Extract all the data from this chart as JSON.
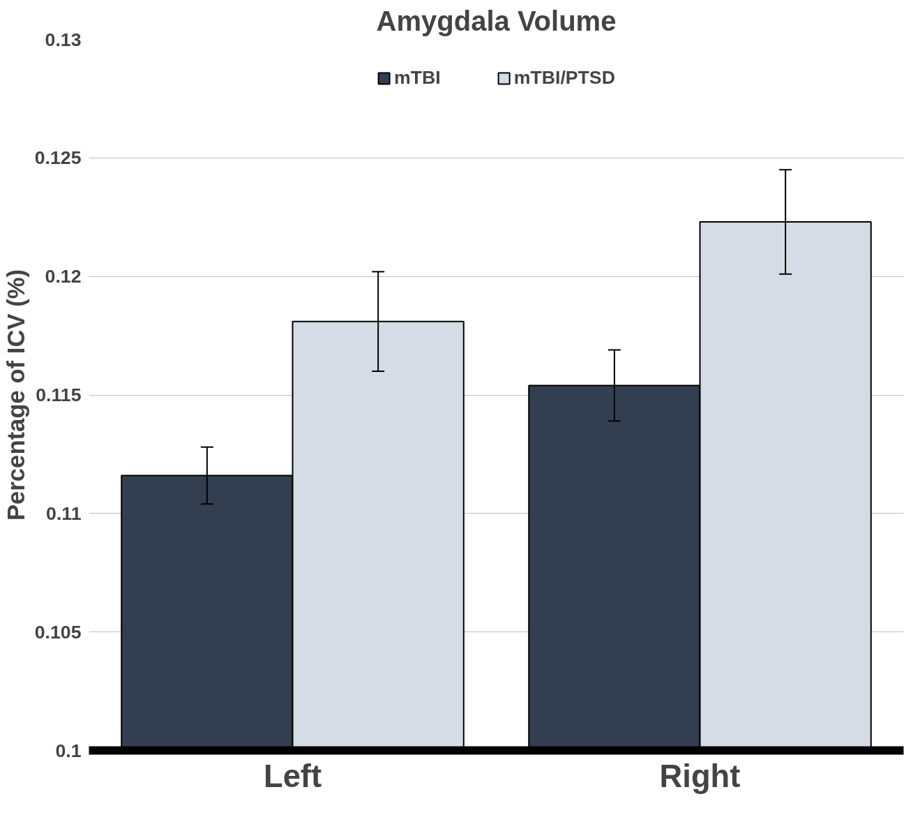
{
  "chart_data": {
    "type": "bar",
    "title": "Amygdala Volume",
    "ylabel": "Percentage of ICV (%)",
    "categories": [
      "Left",
      "Right"
    ],
    "series": [
      {
        "name": "mTBI",
        "color": "#333f50",
        "values": [
          0.1116,
          0.1154
        ],
        "errors": [
          0.0012,
          0.0015
        ]
      },
      {
        "name": "mTBI/PTSD",
        "color": "#d6dce5",
        "values": [
          0.1181,
          0.1223
        ],
        "errors": [
          0.0021,
          0.0022
        ]
      }
    ],
    "ylim": [
      0.1,
      0.13
    ],
    "yticks": [
      0.1,
      0.105,
      0.11,
      0.115,
      0.12,
      0.125,
      0.13
    ],
    "grid": "y",
    "legend": "top"
  }
}
